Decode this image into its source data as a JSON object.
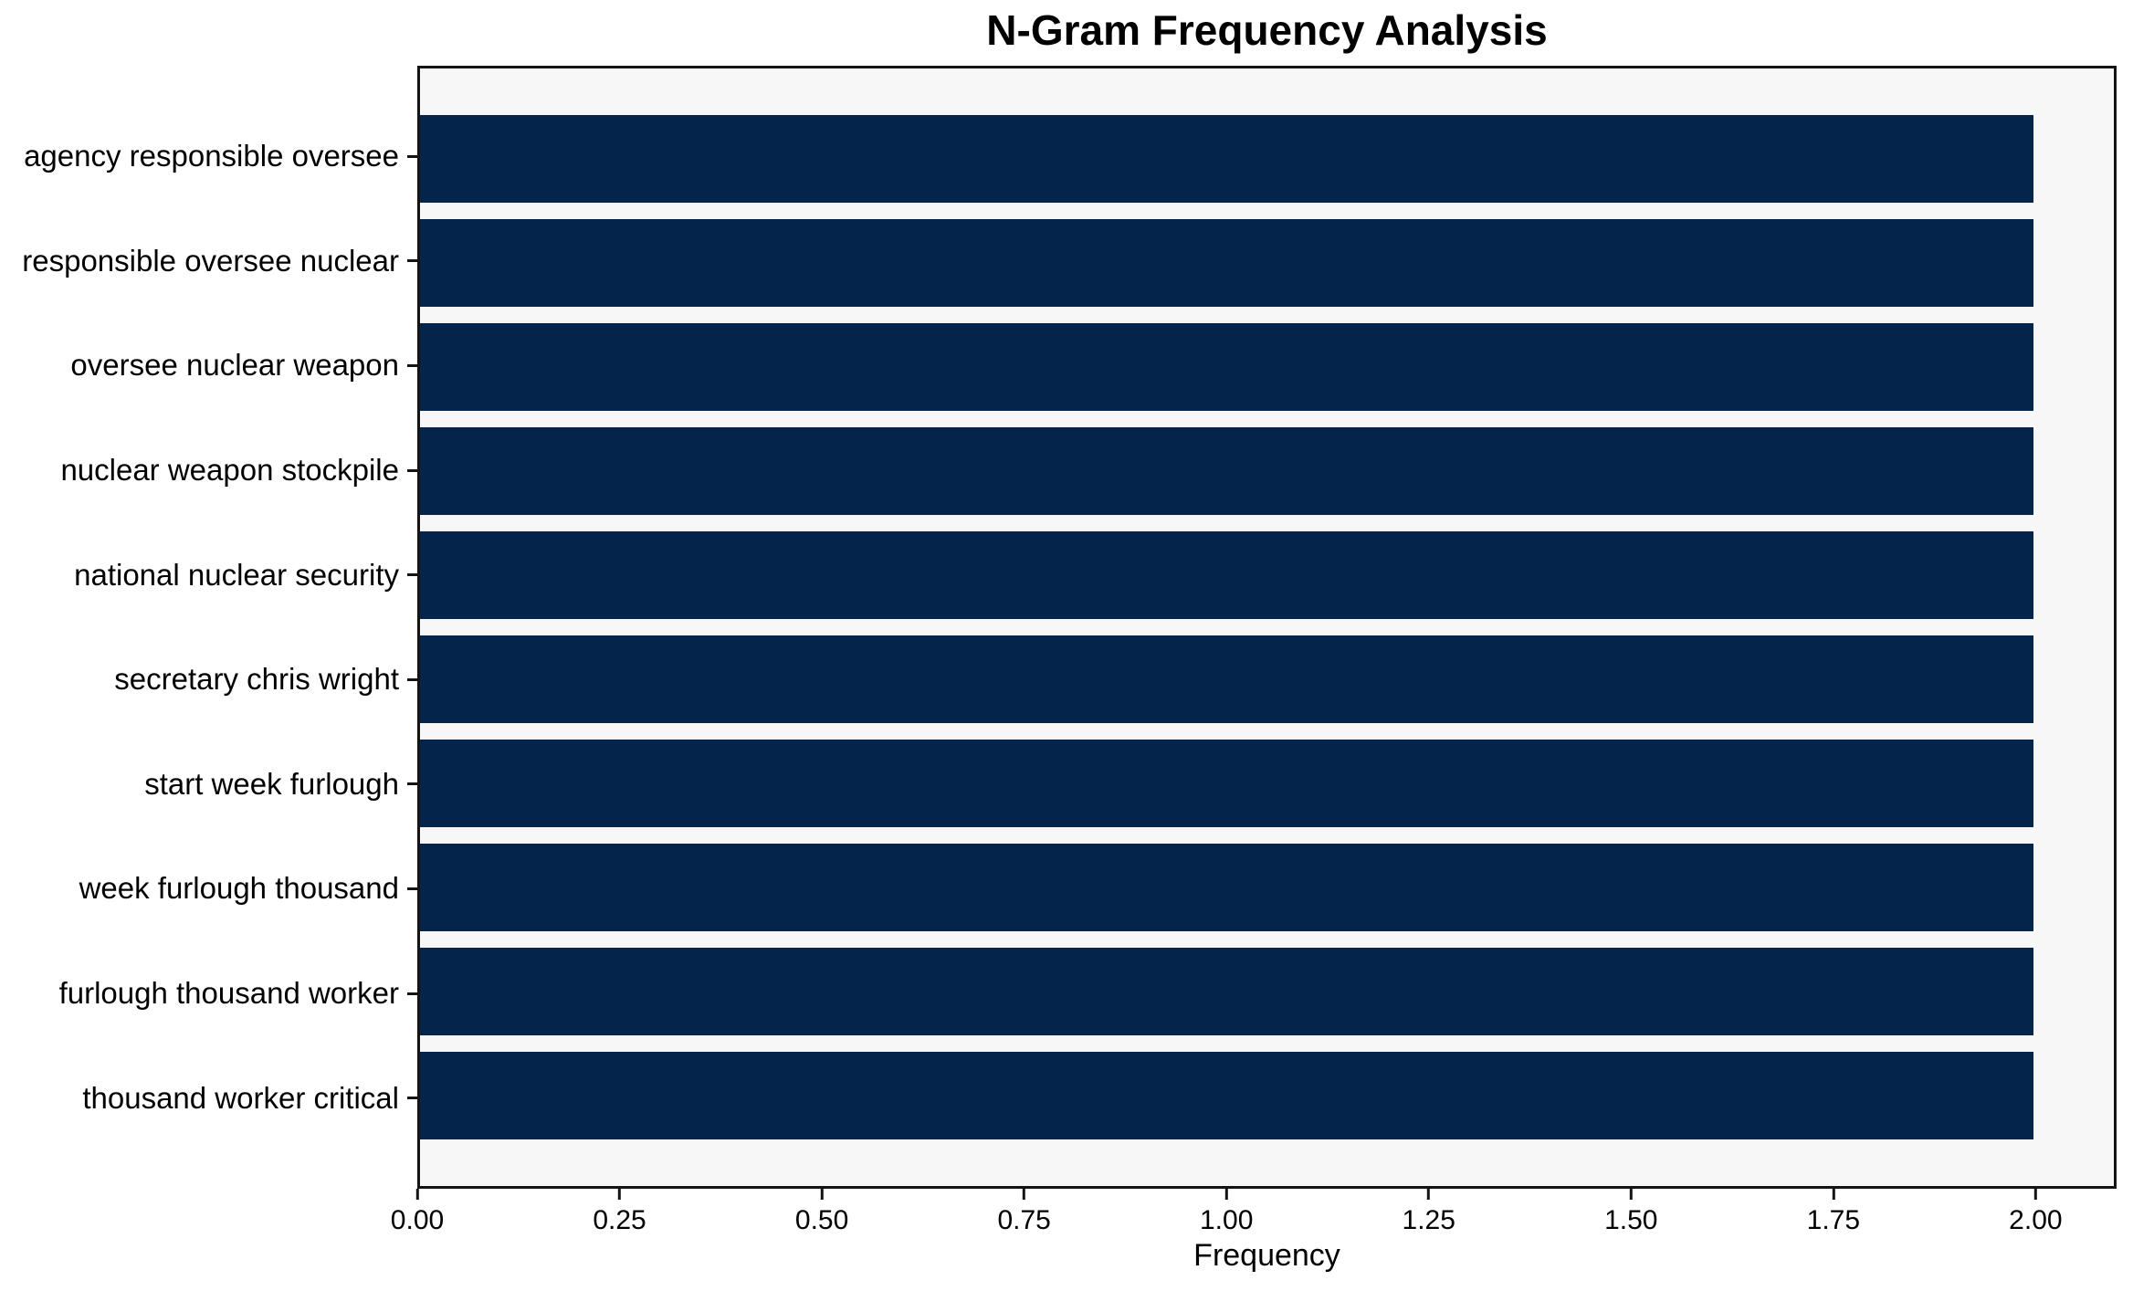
{
  "figure": {
    "background": "#ffffff"
  },
  "chart_data": {
    "type": "bar",
    "orientation": "horizontal",
    "title": "N-Gram Frequency Analysis",
    "xlabel": "Frequency",
    "ylabel": "",
    "categories": [
      "agency responsible oversee",
      "responsible oversee nuclear",
      "oversee nuclear weapon",
      "nuclear weapon stockpile",
      "national nuclear security",
      "secretary chris wright",
      "start week furlough",
      "week furlough thousand",
      "furlough thousand worker",
      "thousand worker critical"
    ],
    "values": [
      2,
      2,
      2,
      2,
      2,
      2,
      2,
      2,
      2,
      2
    ],
    "xlim": [
      0,
      2.1
    ],
    "xtick_values": [
      0,
      0.25,
      0.5,
      0.75,
      1.0,
      1.25,
      1.5,
      1.75,
      2.0
    ],
    "xtick_labels": [
      "0.00",
      "0.25",
      "0.50",
      "0.75",
      "1.00",
      "1.25",
      "1.50",
      "1.75",
      "2.00"
    ],
    "bar_color": "#04244c",
    "plot_background": "#f7f7f7",
    "spine_color": "#141414",
    "grid": false,
    "legend_position": "none"
  }
}
